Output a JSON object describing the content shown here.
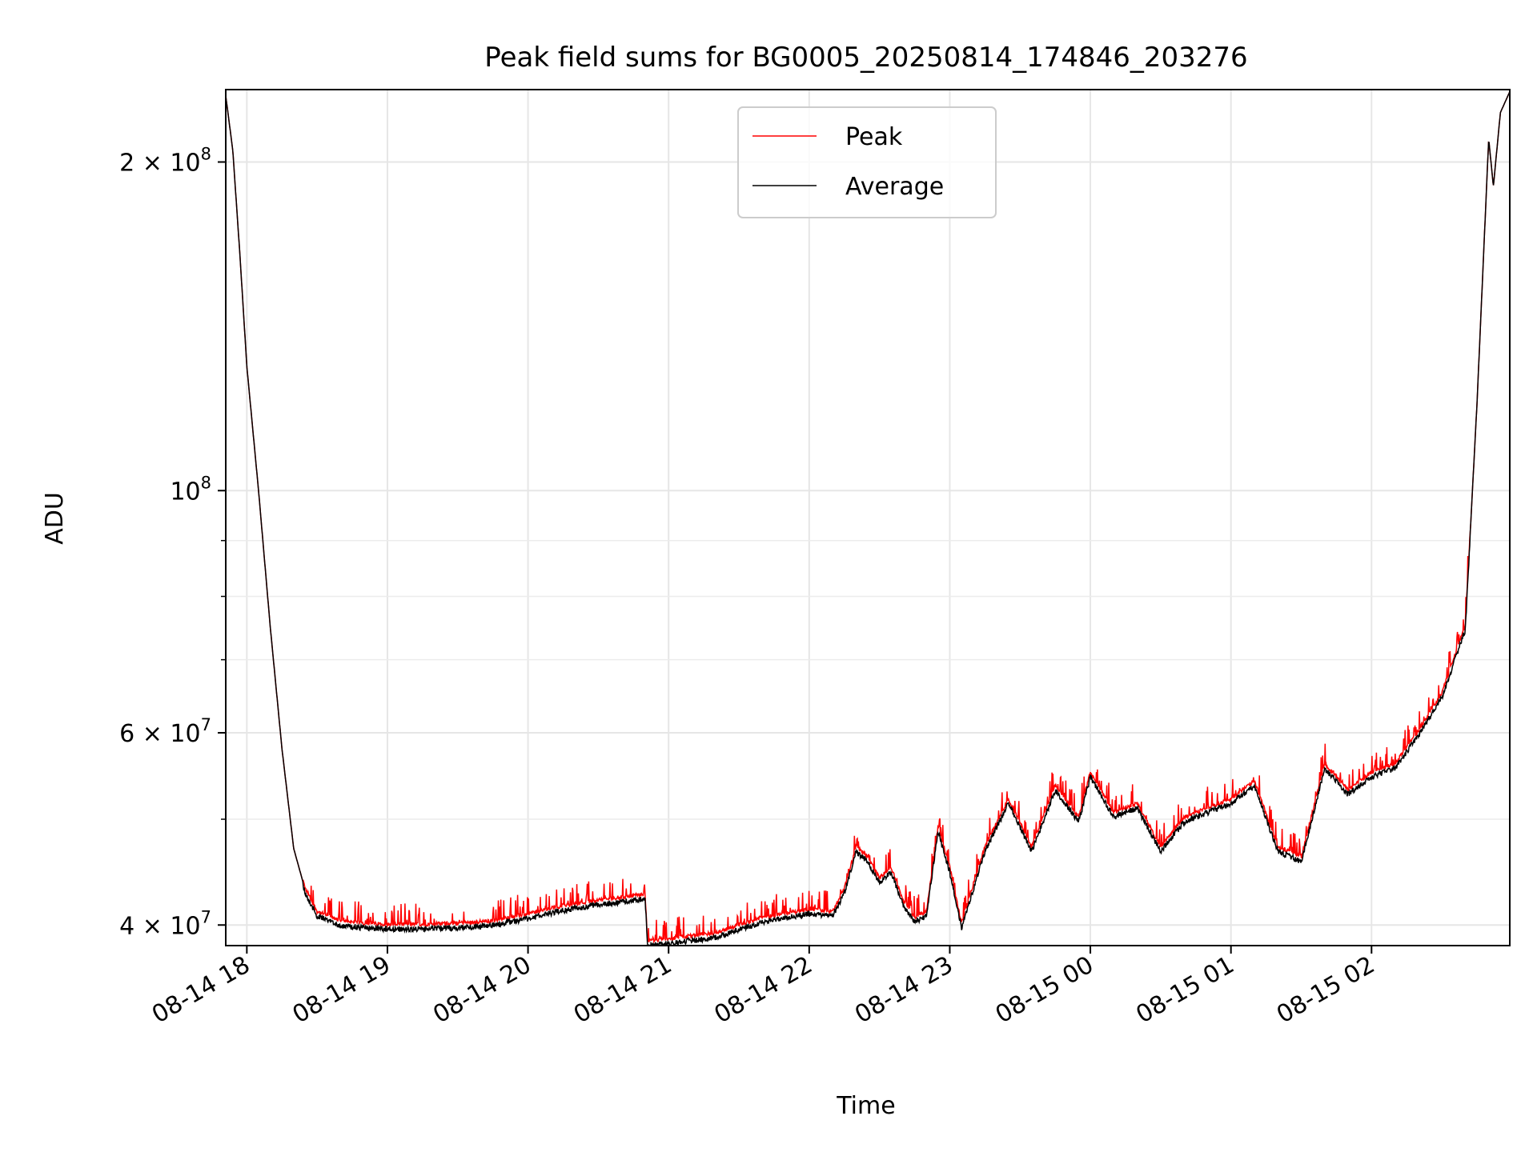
{
  "chart_data": {
    "type": "line",
    "title": "Peak field sums for BG0005_20250814_174846_203276",
    "xlabel": "Time",
    "ylabel": "ADU",
    "yscale": "log",
    "grid": true,
    "legend_position": "upper center",
    "xlim": [
      "2025-08-14 17:51",
      "2025-08-15 02:59"
    ],
    "ylim": [
      38300000,
      233000000
    ],
    "x_ticks": [
      {
        "value": "2025-08-14 18:00",
        "label": "08-14 18"
      },
      {
        "value": "2025-08-14 19:00",
        "label": "08-14 19"
      },
      {
        "value": "2025-08-14 20:00",
        "label": "08-14 20"
      },
      {
        "value": "2025-08-14 21:00",
        "label": "08-14 21"
      },
      {
        "value": "2025-08-14 22:00",
        "label": "08-14 22"
      },
      {
        "value": "2025-08-14 23:00",
        "label": "08-14 23"
      },
      {
        "value": "2025-08-15 00:00",
        "label": "08-15 00"
      },
      {
        "value": "2025-08-15 01:00",
        "label": "08-15 01"
      },
      {
        "value": "2025-08-15 02:00",
        "label": "08-15 02"
      }
    ],
    "y_ticks": [
      {
        "value": 40000000,
        "label_base": "4 × 10",
        "label_exp": "7"
      },
      {
        "value": 60000000,
        "label_base": "6 × 10",
        "label_exp": "7"
      },
      {
        "value": 100000000,
        "label_base": "10",
        "label_exp": "8"
      },
      {
        "value": 200000000,
        "label_base": "2 × 10",
        "label_exp": "8"
      }
    ],
    "y_minor_ticks": [
      50000000,
      70000000,
      80000000,
      90000000
    ],
    "series": [
      {
        "name": "Peak",
        "color": "#ff0000",
        "spiky": true
      },
      {
        "name": "Average",
        "color": "#000000",
        "spiky": false
      }
    ],
    "x": [
      "2025-08-14 17:51",
      "2025-08-14 17:54",
      "2025-08-14 17:57",
      "2025-08-14 18:00",
      "2025-08-14 18:05",
      "2025-08-14 18:10",
      "2025-08-14 18:15",
      "2025-08-14 18:20",
      "2025-08-14 18:25",
      "2025-08-14 18:30",
      "2025-08-14 18:40",
      "2025-08-14 18:50",
      "2025-08-14 19:00",
      "2025-08-14 19:15",
      "2025-08-14 19:30",
      "2025-08-14 19:45",
      "2025-08-14 20:00",
      "2025-08-14 20:15",
      "2025-08-14 20:30",
      "2025-08-14 20:50",
      "2025-08-14 20:51",
      "2025-08-14 21:00",
      "2025-08-14 21:20",
      "2025-08-14 21:40",
      "2025-08-14 22:00",
      "2025-08-14 22:10",
      "2025-08-14 22:15",
      "2025-08-14 22:20",
      "2025-08-14 22:25",
      "2025-08-14 22:30",
      "2025-08-14 22:35",
      "2025-08-14 22:40",
      "2025-08-14 22:45",
      "2025-08-14 22:50",
      "2025-08-14 22:55",
      "2025-08-14 23:00",
      "2025-08-14 23:05",
      "2025-08-14 23:15",
      "2025-08-14 23:25",
      "2025-08-14 23:35",
      "2025-08-14 23:45",
      "2025-08-14 23:55",
      "2025-08-15 00:00",
      "2025-08-15 00:10",
      "2025-08-15 00:20",
      "2025-08-15 00:30",
      "2025-08-15 00:40",
      "2025-08-15 00:50",
      "2025-08-15 01:00",
      "2025-08-15 01:10",
      "2025-08-15 01:20",
      "2025-08-15 01:30",
      "2025-08-15 01:40",
      "2025-08-15 01:50",
      "2025-08-15 02:00",
      "2025-08-15 02:10",
      "2025-08-15 02:20",
      "2025-08-15 02:30",
      "2025-08-15 02:40",
      "2025-08-15 02:45",
      "2025-08-15 02:50",
      "2025-08-15 02:52",
      "2025-08-15 02:55",
      "2025-08-15 02:59"
    ],
    "y": [
      230000000,
      205000000,
      165000000,
      130000000,
      100000000,
      75000000,
      58000000,
      47000000,
      43000000,
      41000000,
      40200000,
      40000000,
      39900000,
      39900000,
      40000000,
      40200000,
      40800000,
      41500000,
      42000000,
      42500000,
      38500000,
      38700000,
      39200000,
      40500000,
      41200000,
      41000000,
      43000000,
      47000000,
      46000000,
      44000000,
      45000000,
      42000000,
      40500000,
      41000000,
      49000000,
      45000000,
      40000000,
      47000000,
      52000000,
      47000000,
      53500000,
      50000000,
      55000000,
      50500000,
      51500000,
      47000000,
      50000000,
      51000000,
      52000000,
      54000000,
      47000000,
      46000000,
      56000000,
      53000000,
      55000000,
      56000000,
      60000000,
      65000000,
      75000000,
      120000000,
      210000000,
      190000000,
      222000000,
      232000000
    ]
  }
}
